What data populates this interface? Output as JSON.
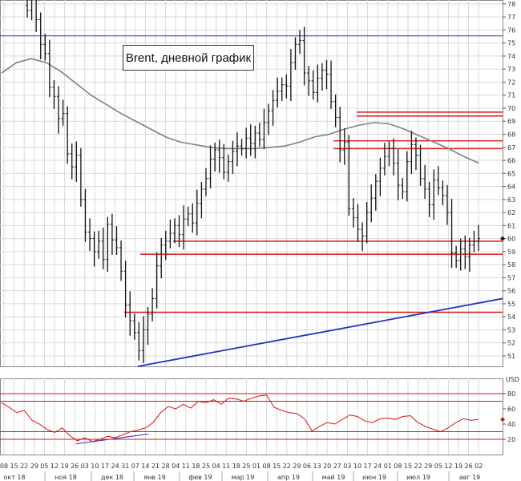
{
  "chart_data": [
    {
      "type": "line",
      "title": "Brent, дневной график",
      "ylabel": "",
      "xlabel": "",
      "ylim": [
        50,
        78
      ],
      "yticks": [
        51,
        52,
        53,
        54,
        55,
        56,
        57,
        58,
        59,
        60,
        61,
        62,
        63,
        64,
        65,
        66,
        67,
        68,
        69,
        70,
        71,
        72,
        73,
        74,
        75,
        76,
        77,
        78
      ],
      "last_price": 60,
      "x_day_labels": [
        "08",
        "15",
        "22",
        "29",
        "05",
        "12",
        "19",
        "26",
        "03",
        "10",
        "17",
        "24",
        "31",
        "07",
        "14",
        "21",
        "28",
        "04",
        "11",
        "18",
        "25",
        "04",
        "11",
        "18",
        "25",
        "01",
        "08",
        "15",
        "22",
        "29",
        "06",
        "13",
        "20",
        "27",
        "03",
        "10",
        "17",
        "24",
        "01",
        "08",
        "15",
        "22",
        "29",
        "05",
        "12",
        "19",
        "26",
        "02"
      ],
      "x_month_labels": [
        "окт 18",
        "ноя 18",
        "дек 18",
        "янв 19",
        "фев 19",
        "мар 19",
        "апр 19",
        "май 19",
        "июн 19",
        "июл 19",
        "авг 19"
      ],
      "series": [
        {
          "type": "ohlc",
          "close": [
            77.5,
            78.8,
            76.8,
            74.9,
            74.2,
            71.6,
            70.9,
            69.2,
            69.6,
            66.5,
            65.5,
            66.4,
            63.0,
            60.5,
            60.0,
            59.0,
            59.8,
            58.4,
            61.1,
            59.9,
            59.3,
            57.5,
            54.9,
            53.7,
            52.8,
            51.4,
            53.0,
            54.2,
            55.4,
            57.9,
            59.5,
            59.8,
            60.4,
            61.0,
            60.3,
            61.5,
            61.9,
            61.2,
            62.7,
            63.8,
            64.6,
            66.1,
            66.8,
            66.2,
            65.1,
            65.9,
            66.7,
            67.1,
            66.9,
            67.7,
            67.3,
            68.1,
            67.6,
            68.9,
            69.8,
            70.6,
            71.3,
            71.8,
            71.7,
            73.5,
            74.9,
            75.2,
            72.7,
            72.1,
            71.2,
            72.3,
            72.9,
            72.6,
            70.5,
            69.3,
            66.8,
            67.4,
            62.3,
            61.6,
            60.7,
            60.2,
            62.0,
            63.1,
            64.4,
            65.4,
            66.3,
            66.9,
            65.8,
            64.1,
            63.6,
            65.9,
            67.2,
            66.4,
            64.6,
            63.8,
            62.6,
            64.5,
            63.9,
            63.3,
            62.0,
            58.9,
            58.3,
            59.2,
            58.6,
            59.5,
            59.8,
            60.0
          ],
          "low_estimate": 50.5,
          "high_estimate": 78.8
        },
        {
          "type": "ma",
          "values": [
            72.7,
            73.5,
            73.8,
            73.5,
            72.8,
            71.9,
            71.0,
            70.3,
            69.6,
            69.0,
            68.4,
            67.8,
            67.4,
            67.2,
            67.0,
            66.9,
            66.9,
            66.9,
            67.0,
            67.1,
            67.4,
            67.8,
            68.0,
            68.4,
            68.7,
            68.9,
            68.8,
            68.4,
            67.9,
            67.4,
            66.9,
            66.3,
            65.8
          ]
        },
        {
          "type": "rsi",
          "ylim": [
            0,
            100
          ],
          "values": [
            68,
            62,
            55,
            58,
            45,
            40,
            33,
            29,
            35,
            25,
            18,
            22,
            17,
            20,
            24,
            22,
            26,
            30,
            32,
            35,
            42,
            55,
            63,
            60,
            66,
            61,
            70,
            68,
            72,
            66,
            74,
            73,
            70,
            74,
            77,
            78,
            62,
            58,
            55,
            54,
            47,
            31,
            37,
            42,
            40,
            46,
            52,
            50,
            44,
            42,
            47,
            48,
            46,
            50,
            51,
            42,
            37,
            33,
            30,
            35,
            42,
            47,
            45,
            46
          ]
        }
      ]
    }
  ],
  "rsi_axis": {
    "unit_label": "USD",
    "ticks": [
      20,
      40,
      60,
      80
    ],
    "last_value": 46
  },
  "colors": {
    "price": "#111111",
    "ma": "#808080",
    "rsi": "#dd1111",
    "level": "#dd1111",
    "trend": "#2233bb",
    "grid": "#d9d9d9",
    "marker": "#dd1111"
  },
  "horizontal_levels": [
    75.55,
    69.7,
    69.4,
    67.5,
    66.9,
    59.8,
    58.8,
    54.35
  ],
  "rsi_levels": [
    80,
    70,
    30,
    20
  ]
}
